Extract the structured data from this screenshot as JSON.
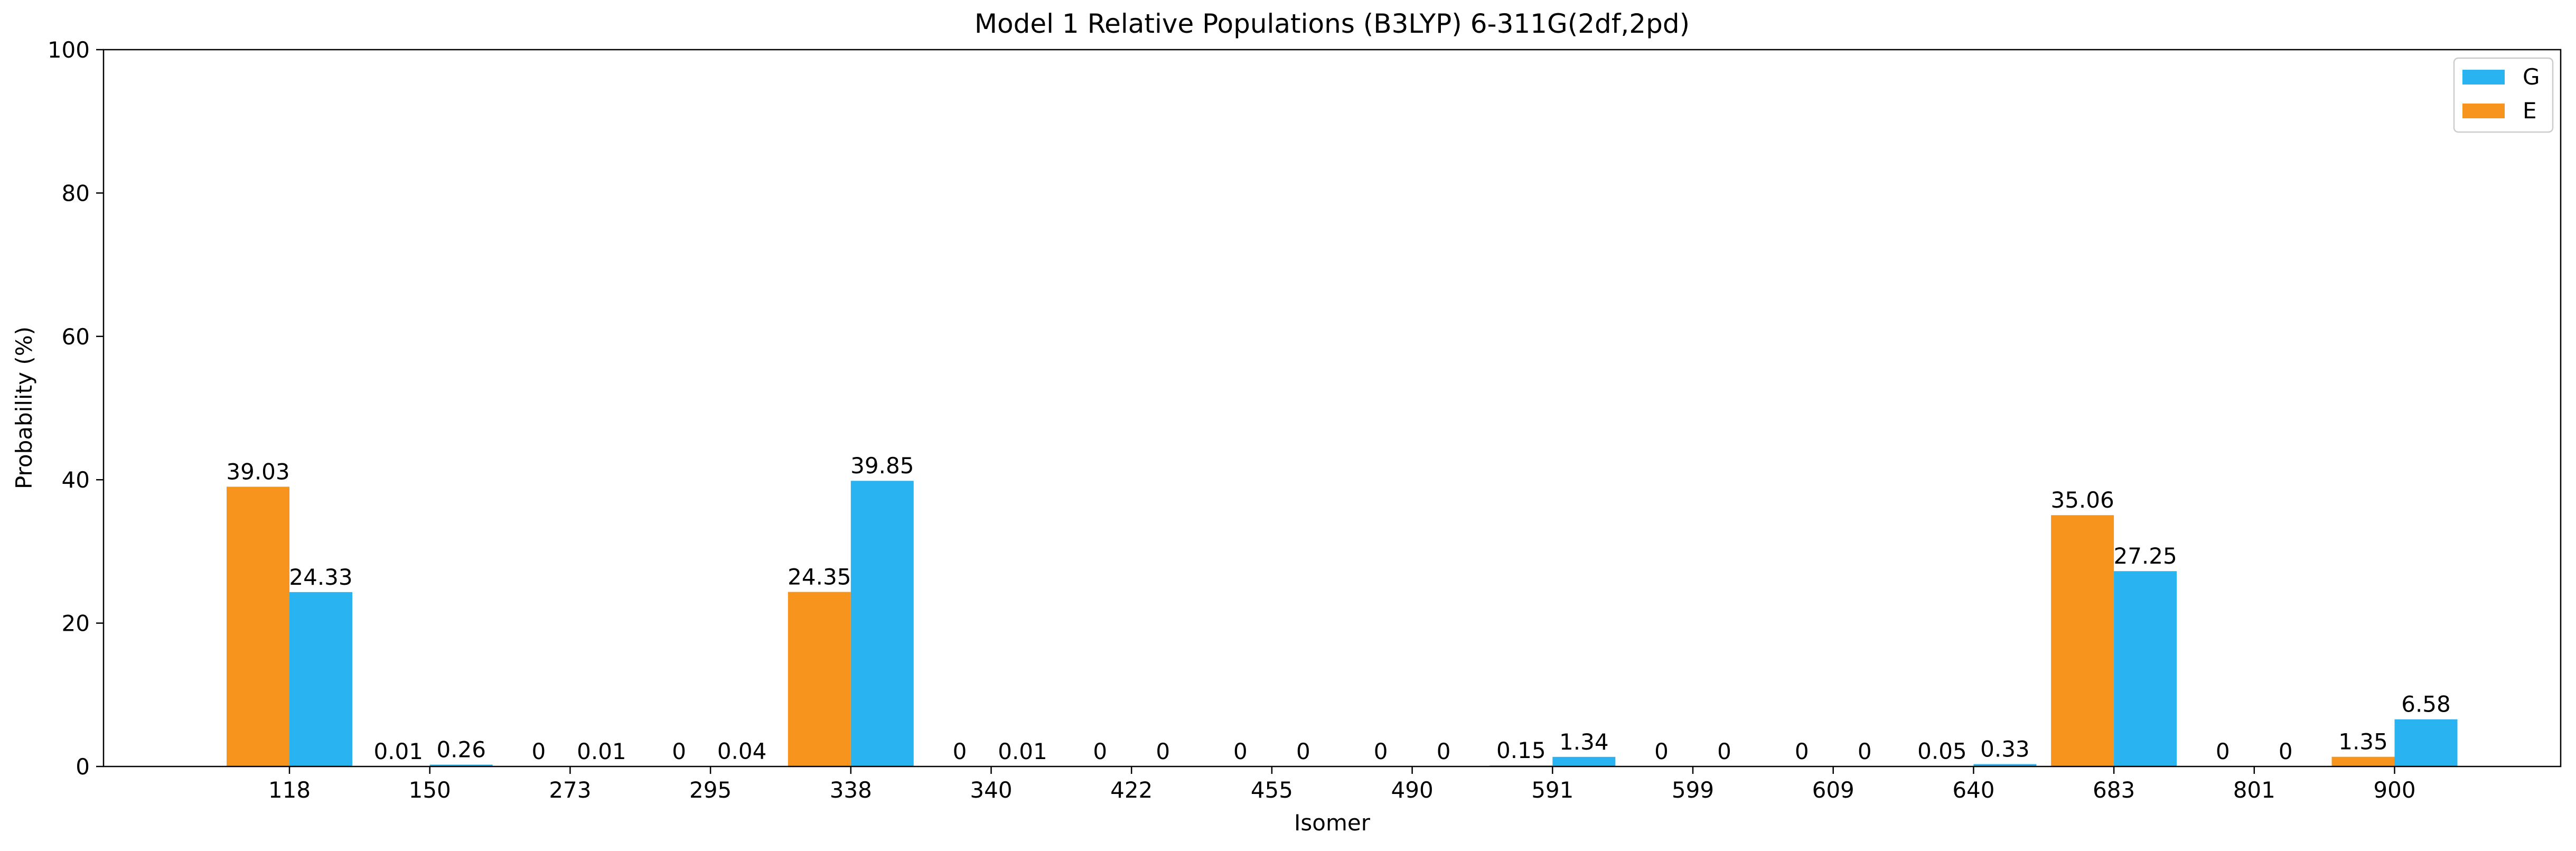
{
  "chart_data": {
    "type": "bar",
    "title": "Model 1 Relative Populations (B3LYP) 6-311G(2df,2pd)",
    "xlabel": "Isomer",
    "ylabel": "Probability (%)",
    "ylim": [
      0,
      100
    ],
    "yticks": [
      "0",
      "20",
      "40",
      "60",
      "80",
      "100"
    ],
    "categories": [
      "118",
      "150",
      "273",
      "295",
      "338",
      "340",
      "422",
      "455",
      "490",
      "591",
      "599",
      "609",
      "640",
      "683",
      "801",
      "900"
    ],
    "series": [
      {
        "name": "E",
        "color": "#F7941D",
        "values": [
          39.03,
          0.01,
          0,
          0,
          24.35,
          0,
          0,
          0,
          0,
          0.15,
          0,
          0,
          0.05,
          35.06,
          0,
          1.35
        ],
        "labels": [
          "39.03",
          "0.01",
          "0",
          "0",
          "24.35",
          "0",
          "0",
          "0",
          "0",
          "0.15",
          "0",
          "0",
          "0.05",
          "35.06",
          "0",
          "1.35"
        ]
      },
      {
        "name": "G",
        "color": "#29B3F0",
        "values": [
          24.33,
          0.26,
          0.01,
          0.04,
          39.85,
          0.01,
          0,
          0,
          0,
          1.34,
          0,
          0,
          0.33,
          27.25,
          0,
          6.58
        ],
        "labels": [
          "24.33",
          "0.26",
          "0.01",
          "0.04",
          "39.85",
          "0.01",
          "0",
          "0",
          "0",
          "1.34",
          "0",
          "0",
          "0.33",
          "27.25",
          "0",
          "6.58"
        ]
      }
    ],
    "legend": {
      "position": "top-right",
      "entries": [
        "G",
        "E"
      ]
    },
    "grid": false
  }
}
